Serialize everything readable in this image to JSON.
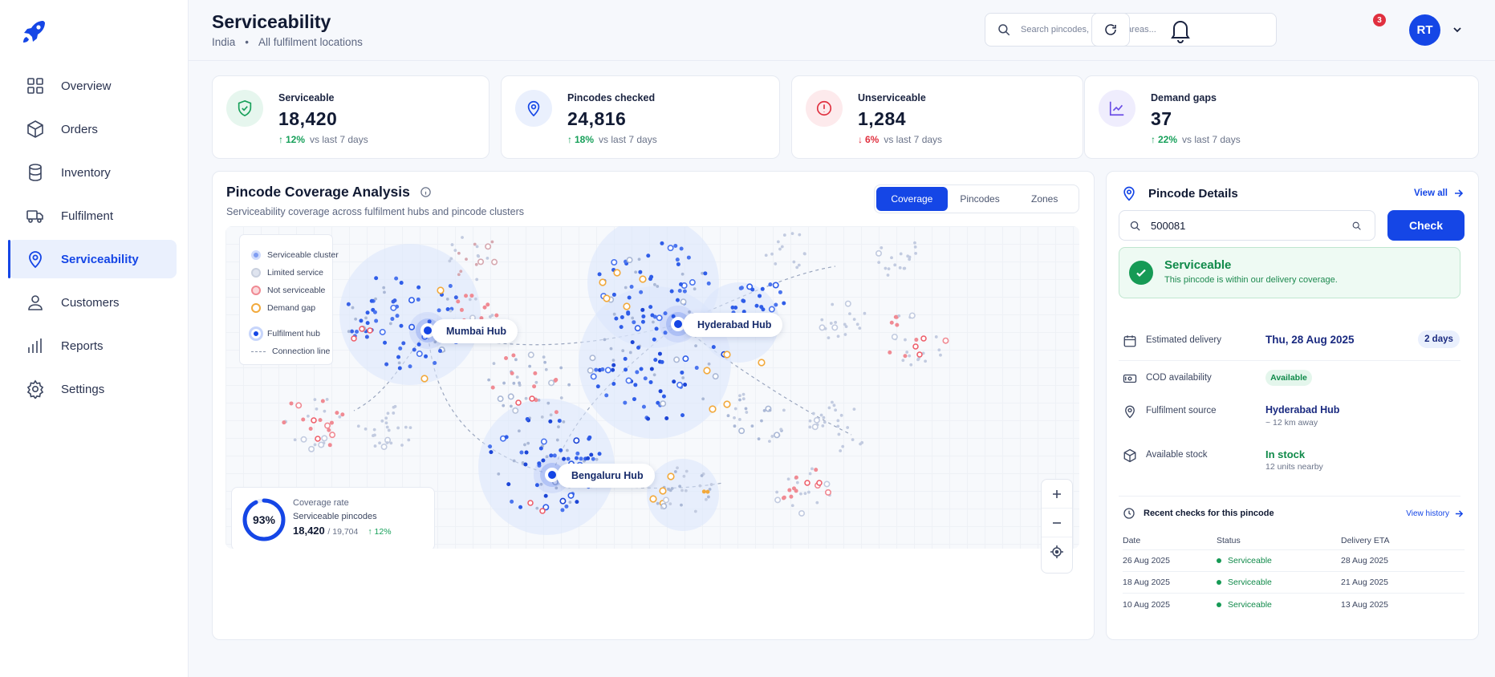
{
  "app": {
    "title": "Serviceability",
    "country": "India",
    "scope": "All fulfilment locations"
  },
  "sidebar": {
    "items": [
      {
        "id": "overview",
        "label": "Overview",
        "icon": "grid-icon"
      },
      {
        "id": "orders",
        "label": "Orders",
        "icon": "box-icon"
      },
      {
        "id": "inventory",
        "label": "Inventory",
        "icon": "database-icon"
      },
      {
        "id": "fulfilment",
        "label": "Fulfilment",
        "icon": "truck-icon"
      },
      {
        "id": "serviceability",
        "label": "Serviceability",
        "icon": "map-pin-icon",
        "active": true
      },
      {
        "id": "customers",
        "label": "Customers",
        "icon": "user-icon"
      },
      {
        "id": "reports",
        "label": "Reports",
        "icon": "bar-chart-icon"
      },
      {
        "id": "settings",
        "label": "Settings",
        "icon": "gear-icon"
      }
    ]
  },
  "header": {
    "search_placeholder": "Search pincodes, cities, or areas...",
    "notification_count": "3",
    "avatar_initials": "RT"
  },
  "kpis": [
    {
      "label": "Serviceable",
      "value": "18,420",
      "change": "12%",
      "direction": "up",
      "suffix": "vs last 7 days",
      "color": "#17a05a"
    },
    {
      "label": "Pincodes checked",
      "value": "24,816",
      "change": "18%",
      "direction": "up",
      "suffix": "vs last 7 days",
      "color": "#1546e6"
    },
    {
      "label": "Unserviceable",
      "value": "1,284",
      "change": "6%",
      "direction": "down",
      "suffix": "vs last 7 days",
      "color": "#e0303f"
    },
    {
      "label": "Demand gaps",
      "value": "37",
      "change": "22%",
      "direction": "up",
      "suffix": "vs last 7 days",
      "color": "#6a4de6"
    }
  ],
  "coverage": {
    "title": "Pincode Coverage Analysis",
    "subtitle": "Serviceability coverage across fulfilment hubs and pincode clusters",
    "tabs": [
      "Coverage",
      "Pincodes",
      "Zones"
    ],
    "active_tab": "Coverage",
    "legend": [
      "Serviceable cluster",
      "Limited service",
      "Not serviceable",
      "Demand gap",
      "Fulfilment hub",
      "Connection line"
    ],
    "hubs": [
      "Mumbai Hub",
      "Hyderabad Hub",
      "Bengaluru Hub"
    ],
    "rate": {
      "percent": "93%",
      "fraction": 0.93,
      "label": "Coverage rate",
      "sublabel": "Serviceable pincodes",
      "count": "18,420",
      "total": "/ 19,704",
      "change": "12%"
    }
  },
  "details": {
    "title": "Pincode Details",
    "view_all": "View all",
    "pincode": "500081",
    "check_label": "Check",
    "status_title": "Serviceable",
    "status_text": "This pincode is within our delivery coverage.",
    "rows": {
      "delivery": {
        "label": "Estimated delivery",
        "value": "Thu, 28 Aug 2025",
        "pill": "2 days"
      },
      "cod": {
        "label": "COD availability",
        "value": "Available"
      },
      "source": {
        "label": "Fulfilment source",
        "value": "Hyderabad Hub",
        "sub": "~ 12 km away"
      },
      "stock": {
        "label": "Available stock",
        "value": "In stock",
        "sub": "12 units nearby"
      }
    },
    "recent": {
      "title": "Recent checks for this pincode",
      "history_label": "View history",
      "headers": [
        "Date",
        "Status",
        "Delivery ETA"
      ],
      "rows": [
        {
          "date": "26 Aug 2025",
          "status": "Serviceable",
          "eta": "28 Aug 2025"
        },
        {
          "date": "18 Aug 2025",
          "status": "Serviceable",
          "eta": "21 Aug 2025"
        },
        {
          "date": "10 Aug 2025",
          "status": "Serviceable",
          "eta": "13 Aug 2025"
        }
      ]
    }
  }
}
